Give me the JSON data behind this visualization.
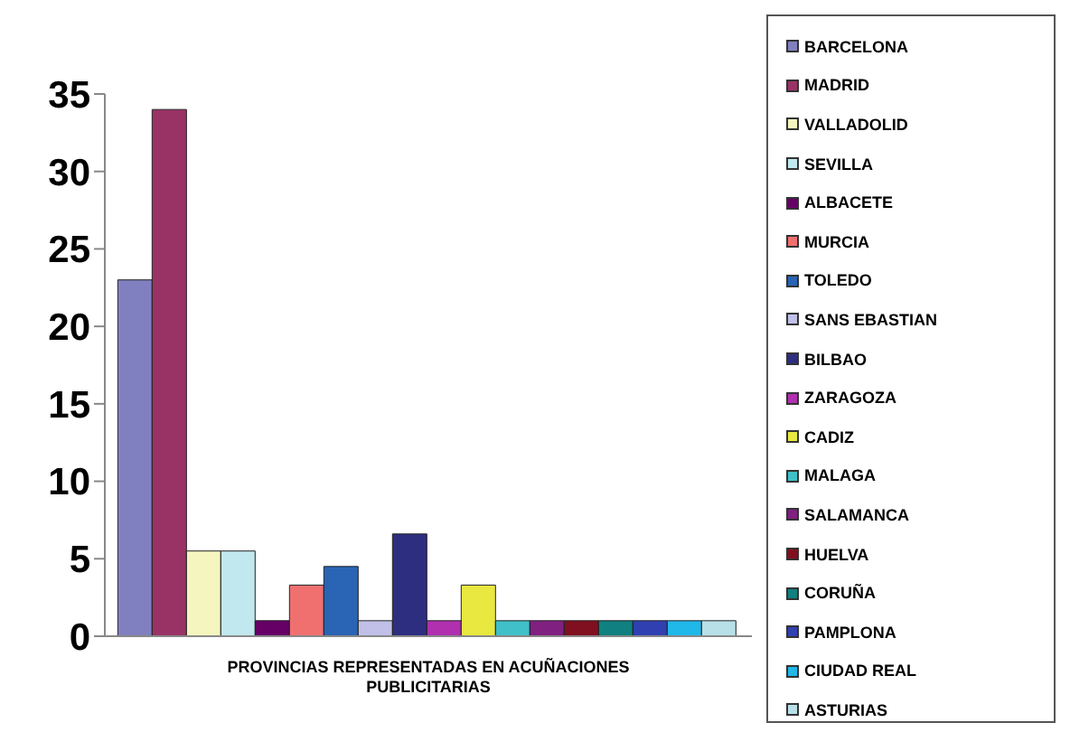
{
  "chart_data": {
    "type": "bar",
    "categories": [
      "PROVINCIAS REPRESENTADAS EN ACUÑACIONES PUBLICITARIAS"
    ],
    "series": [
      {
        "name": "BARCELONA",
        "color": "#8080c0",
        "values": [
          23
        ]
      },
      {
        "name": "MADRID",
        "color": "#993366",
        "values": [
          34
        ]
      },
      {
        "name": "VALLADOLID",
        "color": "#f5f5c0",
        "values": [
          5.5
        ]
      },
      {
        "name": "SEVILLA",
        "color": "#c0e8ee",
        "values": [
          5.5
        ]
      },
      {
        "name": "ALBACETE",
        "color": "#660066",
        "values": [
          1
        ]
      },
      {
        "name": "MURCIA",
        "color": "#f07070",
        "values": [
          3.3
        ]
      },
      {
        "name": "TOLEDO",
        "color": "#2a64b4",
        "values": [
          4.5
        ]
      },
      {
        "name": "SANS EBASTIAN",
        "color": "#c0c0e8",
        "values": [
          1
        ]
      },
      {
        "name": "BILBAO",
        "color": "#2e2e80",
        "values": [
          6.6
        ]
      },
      {
        "name": "ZARAGOZA",
        "color": "#b030b0",
        "values": [
          1
        ]
      },
      {
        "name": "CADIZ",
        "color": "#e8e840",
        "values": [
          3.3
        ]
      },
      {
        "name": "MALAGA",
        "color": "#40c0c8",
        "values": [
          1
        ]
      },
      {
        "name": "SALAMANCA",
        "color": "#802080",
        "values": [
          1
        ]
      },
      {
        "name": "HUELVA",
        "color": "#801020",
        "values": [
          1
        ]
      },
      {
        "name": "CORUÑA",
        "color": "#108080",
        "values": [
          1
        ]
      },
      {
        "name": "PAMPLONA",
        "color": "#3040b0",
        "values": [
          1
        ]
      },
      {
        "name": "CIUDAD REAL",
        "color": "#20b8e8",
        "values": [
          1
        ]
      },
      {
        "name": "ASTURIAS",
        "color": "#b8e0e8",
        "values": [
          1
        ]
      }
    ],
    "ylim": [
      0,
      35
    ],
    "yticks": [
      0,
      5,
      10,
      15,
      20,
      25,
      30,
      35
    ],
    "grid": false,
    "legend": "right"
  }
}
